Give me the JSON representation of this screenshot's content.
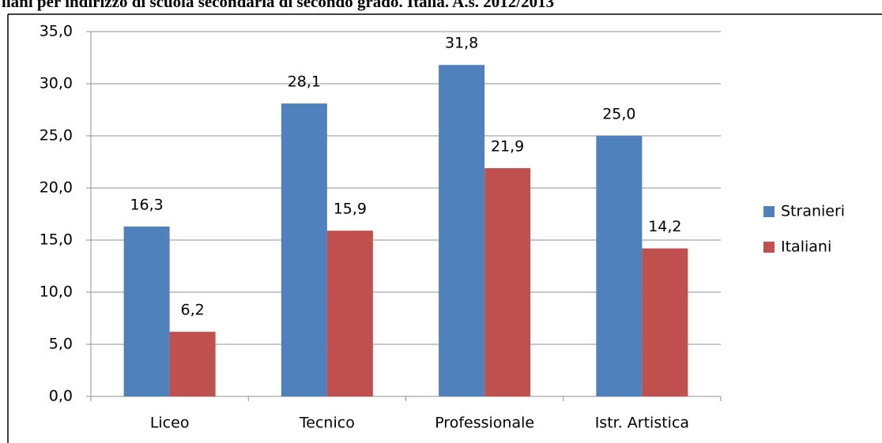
{
  "chart_data": {
    "type": "bar",
    "title": "liani per indirizzo di scuola secondaria di secondo grado. Italia. A.s. 2012/2013",
    "categories": [
      "Liceo",
      "Tecnico",
      "Professionale",
      "Istr. Artistica"
    ],
    "series": [
      {
        "name": "Stranieri",
        "color": "#4f81bd",
        "values": [
          16.3,
          28.1,
          31.8,
          25.0
        ],
        "value_labels": [
          "16,3",
          "28,1",
          "31,8",
          "25,0"
        ]
      },
      {
        "name": "Italiani",
        "color": "#c0504d",
        "values": [
          6.2,
          15.9,
          21.9,
          14.2
        ],
        "value_labels": [
          "6,2",
          "15,9",
          "21,9",
          "14,2"
        ]
      }
    ],
    "ylim": [
      0,
      35
    ],
    "yticks": [
      {
        "value": 0,
        "label": "0,0"
      },
      {
        "value": 5,
        "label": "5,0"
      },
      {
        "value": 10,
        "label": "10,0"
      },
      {
        "value": 15,
        "label": "15,0"
      },
      {
        "value": 20,
        "label": "20,0"
      },
      {
        "value": 25,
        "label": "25,0"
      },
      {
        "value": 30,
        "label": "30,0"
      },
      {
        "value": 35,
        "label": "35,0"
      }
    ],
    "grid": true,
    "legend": "right"
  }
}
